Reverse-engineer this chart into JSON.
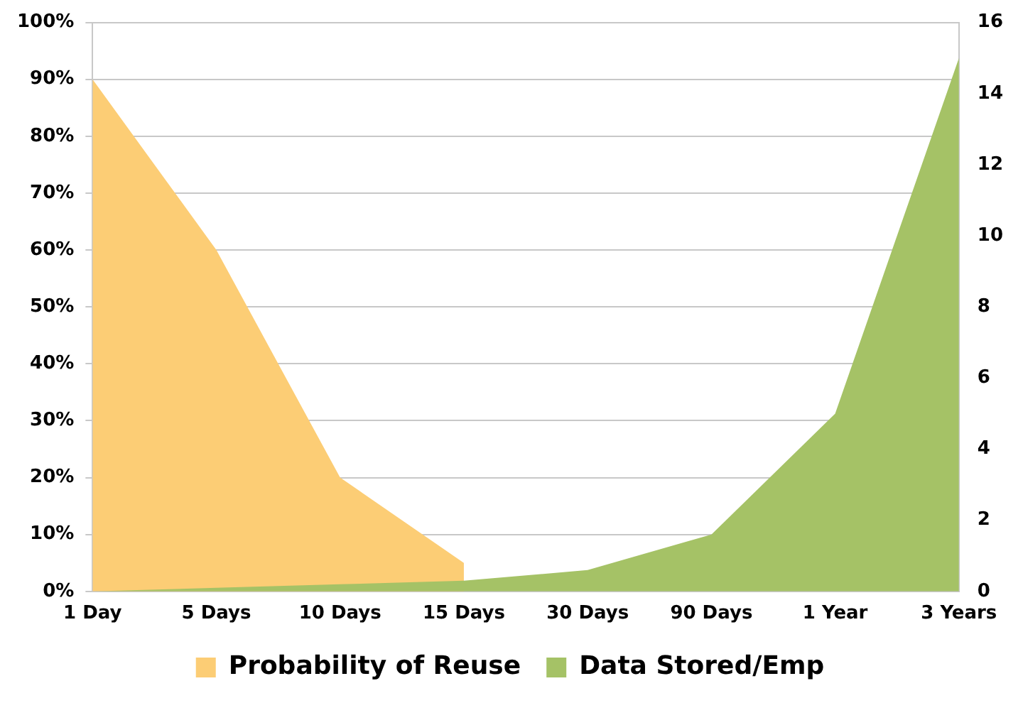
{
  "chart_data": {
    "type": "area",
    "categories": [
      "1 Day",
      "5 Days",
      "10 Days",
      "15 Days",
      "30 Days",
      "90 Days",
      "1 Year",
      "3 Years"
    ],
    "series": [
      {
        "name": "Probability of Reuse",
        "color": "#fccd75",
        "values": [
          90,
          60,
          20,
          5,
          null,
          null,
          null,
          null
        ]
      },
      {
        "name": "Data Stored/Emp",
        "color": "#a5c266",
        "axis": "y2",
        "values": [
          0,
          0.1,
          0.2,
          0.3,
          0.6,
          1.6,
          5,
          15
        ]
      }
    ],
    "ylim": [
      0,
      100
    ],
    "yticks": [
      {
        "value": 0,
        "label": "0%"
      },
      {
        "value": 10,
        "label": "10%"
      },
      {
        "value": 20,
        "label": "20%"
      },
      {
        "value": 30,
        "label": "30%"
      },
      {
        "value": 40,
        "label": "40%"
      },
      {
        "value": 50,
        "label": "50%"
      },
      {
        "value": 60,
        "label": "60%"
      },
      {
        "value": 70,
        "label": "70%"
      },
      {
        "value": 80,
        "label": "80%"
      },
      {
        "value": 90,
        "label": "90%"
      },
      {
        "value": 100,
        "label": "100%"
      }
    ],
    "y2lim": [
      0,
      16
    ],
    "y2ticks": [
      0,
      2,
      4,
      6,
      8,
      10,
      12,
      14,
      16
    ],
    "grid": "y",
    "legend": "bottom"
  }
}
